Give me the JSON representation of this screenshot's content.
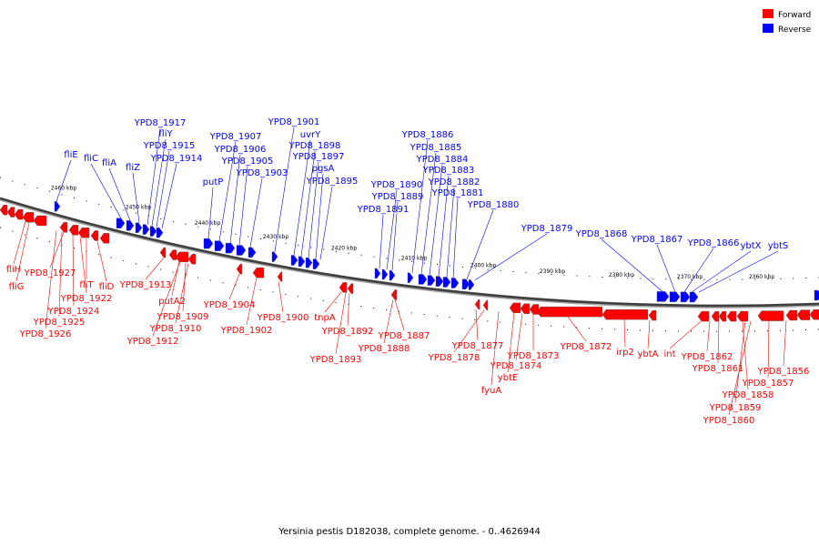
{
  "legend": {
    "forward": {
      "label": "Forward",
      "color": "#ff0000"
    },
    "reverse": {
      "label": "Reverse",
      "color": "#0000ff"
    }
  },
  "caption": "Yersinia pestis D182038, complete genome. - 0..4626944",
  "ticks": [
    "2460 kbp",
    "2450 kbp",
    "2440 kbp",
    "2430 kbp",
    "2420 kbp",
    "2410 kbp",
    "2400 kbp",
    "2390 kbp",
    "2380 kbp",
    "2370 kbp",
    "2360 kbp"
  ],
  "reverse_labels": [
    "fliE",
    "fliC",
    "fliA",
    "fliZ",
    "YPD8_1917",
    "fliY",
    "YPD8_1915",
    "YPD8_1914",
    "putP",
    "YPD8_1907",
    "YPD8_1906",
    "YPD8_1905",
    "YPD8_1903",
    "YPD8_1901",
    "uvrY",
    "YPD8_1898",
    "YPD8_1897",
    "pgsA",
    "YPD8_1895",
    "YPD8_1891",
    "YPD8_1890",
    "YPD8_1889",
    "YPD8_1886",
    "YPD8_1885",
    "YPD8_1884",
    "YPD8_1883",
    "YPD8_1882",
    "YPD8_1881",
    "YPD8_1880",
    "YPD8_1879",
    "YPD8_1868",
    "YPD8_1867",
    "YPD8_1866",
    "ybtX",
    "ybtS"
  ],
  "forward_labels": [
    "fliH",
    "fliG",
    "YPD8_1927",
    "fliT",
    "fliD",
    "YPD8_1924",
    "YPD8_1922",
    "YPD8_1925",
    "YPD8_1926",
    "YPD8_1913",
    "putA2",
    "YPD8_1909",
    "YPD8_1910",
    "YPD8_1912",
    "YPD8_1904",
    "YPD8_1902",
    "YPD8_1900",
    "tnpA",
    "YPD8_1892",
    "YPD8_1893",
    "YPD8_1887",
    "YPD8_1888",
    "YPD8_1877",
    "YPD8_1878",
    "YPD8_1873",
    "YPD8_1874",
    "ybtE",
    "fyuA",
    "YPD8_1872",
    "irp2",
    "ybtA",
    "int",
    "YPD8_1862",
    "YPD8_1861",
    "YPD8_1856",
    "YPD8_1857",
    "YPD8_1858",
    "YPD8_1859",
    "YPD8_1860"
  ]
}
